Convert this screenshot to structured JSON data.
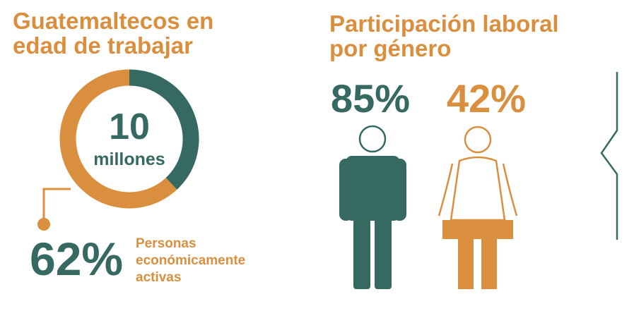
{
  "left": {
    "title": "Guatemaltecos en edad de trabajar",
    "center_number": "10",
    "center_unit": "millones",
    "percent_label": "62%",
    "description": "Personas económicamente activas"
  },
  "right": {
    "title": "Participación laboral por género",
    "men_label": "85%",
    "women_label": "42%"
  },
  "colors": {
    "orange": "#d98f3e",
    "teal": "#356961"
  },
  "chart_data": [
    {
      "type": "pie",
      "title": "Guatemaltecos en edad de trabajar",
      "center_text": "10 millones",
      "slices": [
        {
          "label": "Personas económicamente activas",
          "value": 62,
          "color": "#d98f3e"
        },
        {
          "label": "",
          "value": 38,
          "color": "#356961"
        }
      ]
    },
    {
      "type": "bar",
      "title": "Participación laboral por género",
      "categories": [
        "hombres",
        "mujeres"
      ],
      "values": [
        85,
        42
      ],
      "unit": "%",
      "colors": [
        "#356961",
        "#d98f3e"
      ]
    }
  ]
}
